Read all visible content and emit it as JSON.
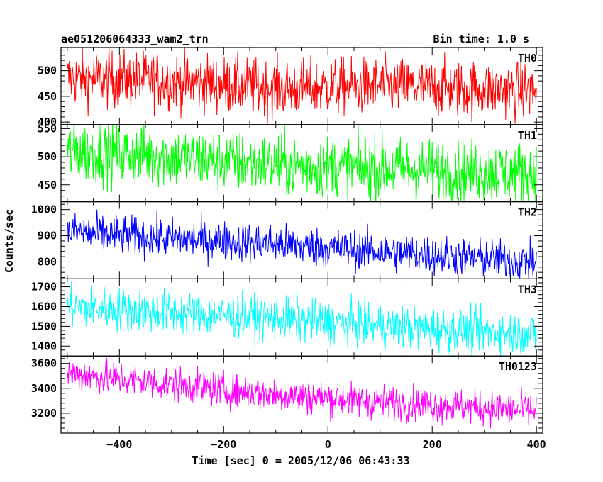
{
  "chart_data": {
    "type": "line",
    "title": "ae051206064333_wam2_trn",
    "subtitle": "Bin time: 1.0 s",
    "xlabel": "Time [sec] 0 = 2005/12/06 06:43:33",
    "ylabel": "Counts/sec",
    "xlim": [
      -512,
      412
    ],
    "x_ticks": [
      -400,
      -200,
      0,
      200,
      400
    ],
    "x_range": [
      -500,
      400
    ],
    "panels": [
      {
        "name": "TH0",
        "color": "#ff0000",
        "ylim": [
          395,
          545
        ],
        "y_ticks": [
          400,
          450,
          500
        ],
        "trend": [
          [
            -500,
            485
          ],
          [
            -300,
            480
          ],
          [
            -100,
            465
          ],
          [
            100,
            470
          ],
          [
            400,
            460
          ]
        ],
        "noise": 28
      },
      {
        "name": "TH1",
        "color": "#00ff00",
        "ylim": [
          420,
          557
        ],
        "y_ticks": [
          450,
          500,
          550
        ],
        "trend": [
          [
            -500,
            510
          ],
          [
            -300,
            500
          ],
          [
            -100,
            485
          ],
          [
            100,
            480
          ],
          [
            400,
            470
          ]
        ],
        "noise": 28
      },
      {
        "name": "TH2",
        "color": "#0000ff",
        "ylim": [
          735,
          1030
        ],
        "y_ticks": [
          800,
          900,
          1000
        ],
        "trend": [
          [
            -500,
            915
          ],
          [
            -300,
            890
          ],
          [
            -100,
            870
          ],
          [
            100,
            840
          ],
          [
            400,
            800
          ]
        ],
        "noise": 38
      },
      {
        "name": "TH3",
        "color": "#00ffff",
        "ylim": [
          1350,
          1740
        ],
        "y_ticks": [
          1400,
          1500,
          1600,
          1700
        ],
        "trend": [
          [
            -500,
            1600
          ],
          [
            -300,
            1570
          ],
          [
            -100,
            1540
          ],
          [
            100,
            1500
          ],
          [
            400,
            1460
          ]
        ],
        "noise": 55
      },
      {
        "name": "TH0123",
        "color": "#ff00ff",
        "ylim": [
          3040,
          3660
        ],
        "y_ticks": [
          3200,
          3400,
          3600
        ],
        "trend": [
          [
            -500,
            3520
          ],
          [
            -300,
            3430
          ],
          [
            -100,
            3350
          ],
          [
            100,
            3290
          ],
          [
            400,
            3220
          ]
        ],
        "noise": 70
      }
    ]
  }
}
